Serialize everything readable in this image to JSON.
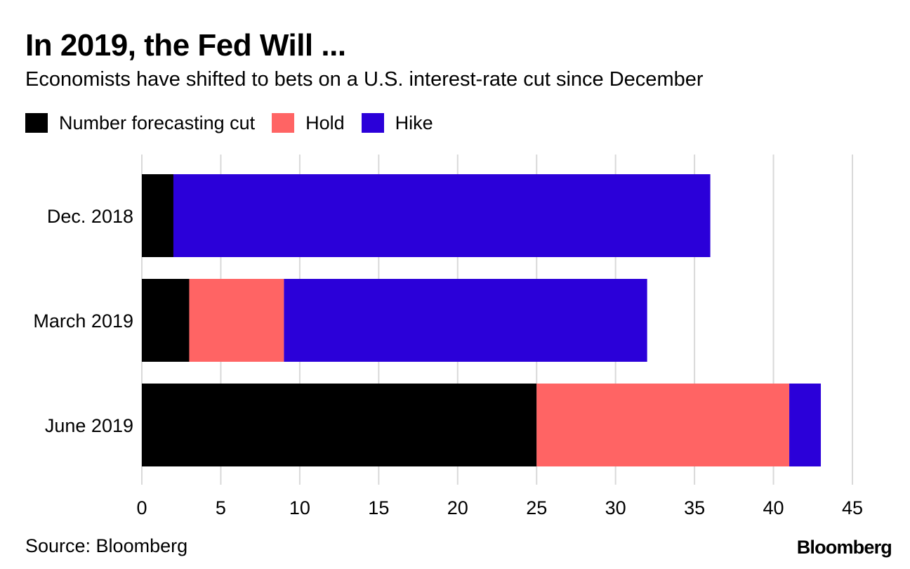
{
  "chart_data": {
    "type": "bar",
    "orientation": "horizontal",
    "stacked": true,
    "title": "In 2019, the Fed Will ...",
    "subtitle": "Economists have shifted to bets on a U.S. interest-rate cut since December",
    "categories": [
      "Dec. 2018",
      "March 2019",
      "June 2019"
    ],
    "series": [
      {
        "name": "Number forecasting cut",
        "color": "#000000",
        "values": [
          2,
          3,
          25
        ]
      },
      {
        "name": "Hold",
        "color": "#ff6464",
        "values": [
          0,
          6,
          16
        ]
      },
      {
        "name": "Hike",
        "color": "#2b00d9",
        "values": [
          34,
          23,
          2
        ]
      }
    ],
    "xlim": [
      0,
      45
    ],
    "xticks": [
      0,
      5,
      10,
      15,
      20,
      25,
      30,
      35,
      40,
      45
    ],
    "grid": true,
    "legend_position": "top-left",
    "xlabel": "",
    "ylabel": ""
  },
  "source": "Source: Bloomberg",
  "brand": "Bloomberg",
  "colors": {
    "grid": "#d9d9d9",
    "text": "#000000",
    "background": "#ffffff"
  }
}
